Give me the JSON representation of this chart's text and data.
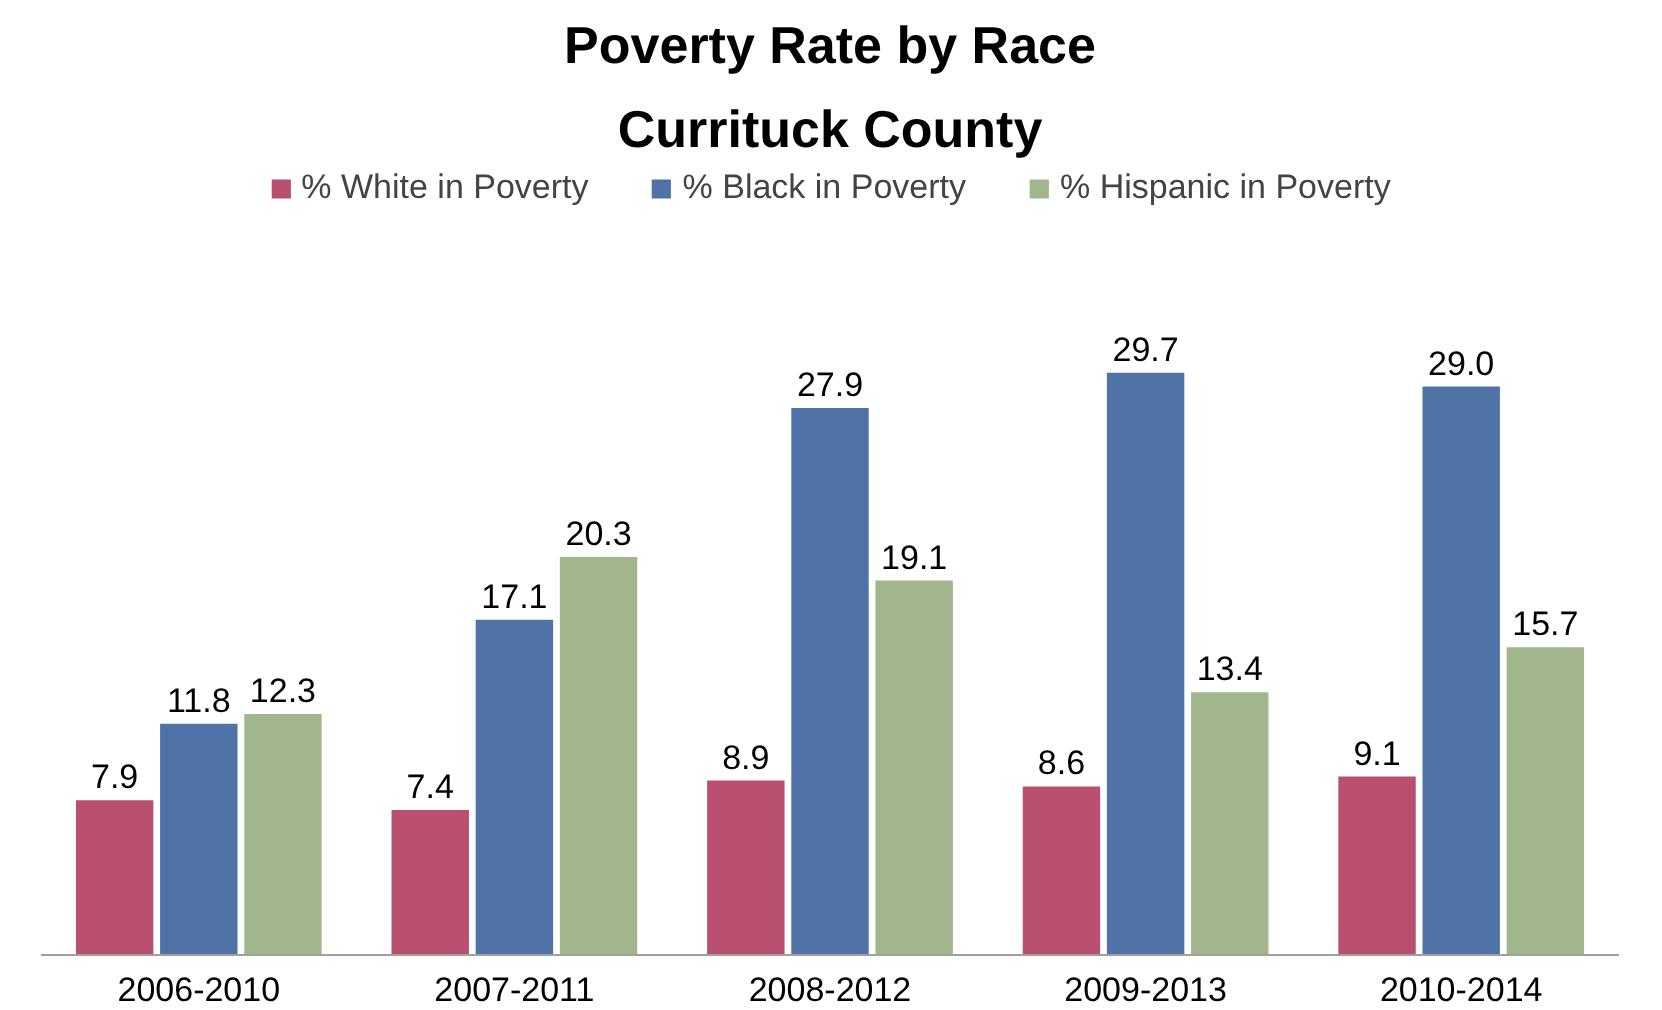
{
  "chart_data": {
    "type": "bar",
    "title": "Poverty Rate by Race",
    "subtitle": "Currituck County",
    "categories": [
      "2006-2010",
      "2007-2011",
      "2008-2012",
      "2009-2013",
      "2010-2014"
    ],
    "series": [
      {
        "name": "% White in Poverty",
        "color": "#b9506f",
        "values": [
          7.9,
          7.4,
          8.9,
          8.6,
          9.1
        ],
        "value_labels": [
          "7.9",
          "7.4",
          "8.9",
          "8.6",
          "9.1"
        ]
      },
      {
        "name": "% Black in Poverty",
        "color": "#4f73a6",
        "values": [
          11.8,
          17.1,
          27.9,
          29.7,
          29.0
        ],
        "value_labels": [
          "11.8",
          "17.1",
          "27.9",
          "29.7",
          "29.0"
        ]
      },
      {
        "name": "% Hispanic in Poverty",
        "color": "#a2b68e",
        "values": [
          12.3,
          20.3,
          19.1,
          13.4,
          15.7
        ],
        "value_labels": [
          "12.3",
          "20.3",
          "19.1",
          "13.4",
          "15.7"
        ]
      }
    ],
    "legend": "top",
    "grid": false
  }
}
